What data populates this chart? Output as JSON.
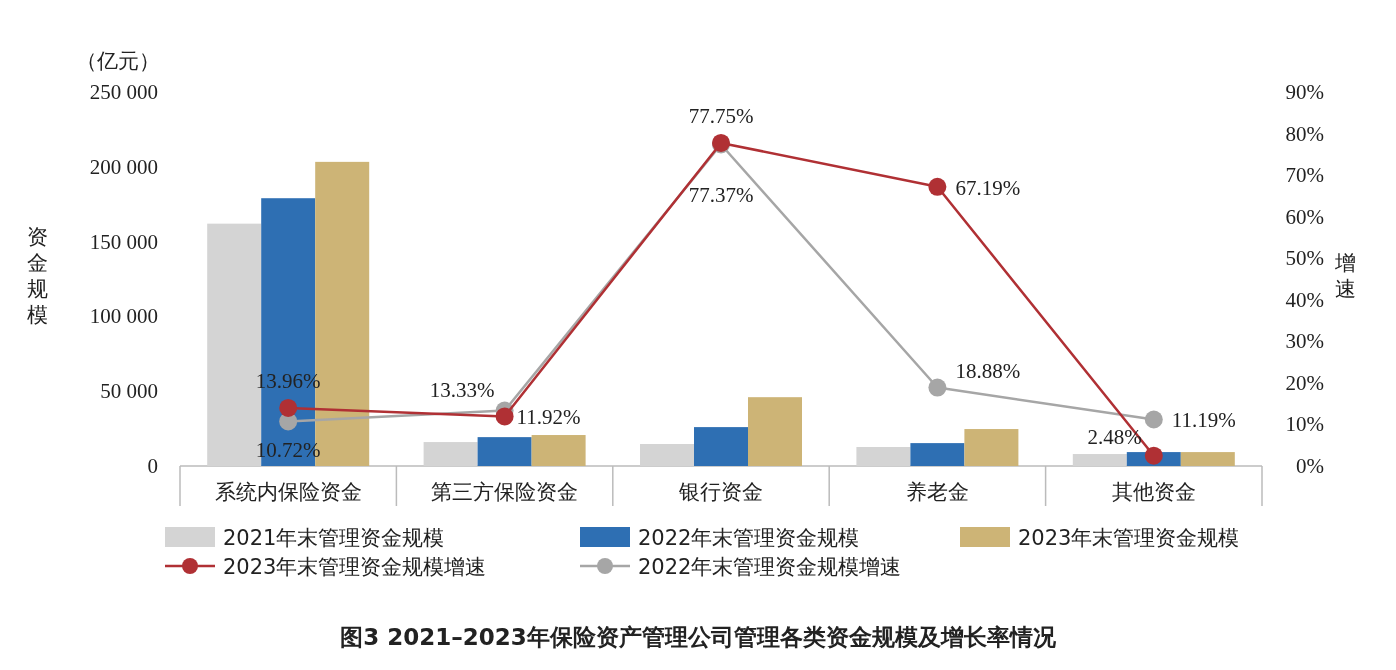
{
  "chart_data": {
    "type": "bar",
    "title": "图3 2021–2023年保险资产管理公司管理各类资金规模及增长率情况",
    "ylabel": "资金规模",
    "y2label": "增速",
    "annotations": [
      "（亿元）"
    ],
    "categories": [
      "系统内保险资金",
      "第三方保险资金",
      "银行资金",
      "养老金",
      "其他资金"
    ],
    "series": [
      {
        "name": "2021年末管理资金规模",
        "color": "#d4d4d4",
        "values": [
          162000,
          16000,
          14700,
          12700,
          8000
        ]
      },
      {
        "name": "2022年末管理资金规模",
        "color": "#2e6fb3",
        "values": [
          179000,
          19300,
          26000,
          15300,
          9300
        ]
      },
      {
        "name": "2023年末管理资金规模",
        "color": "#cdb476",
        "values": [
          203300,
          20700,
          46000,
          24700,
          9300
        ]
      },
      {
        "name": "2023年末管理资金规模增速",
        "type": "line",
        "axis": "y2",
        "color": "#b03034",
        "marker": "circle",
        "values": [
          13.96,
          11.92,
          77.75,
          67.19,
          2.48
        ],
        "value_labels": [
          "13.96%",
          "11.92%",
          "77.75%",
          "67.19%",
          "2.48%"
        ]
      },
      {
        "name": "2022年末管理资金规模增速",
        "type": "line",
        "axis": "y2",
        "color": "#a6a6a6",
        "marker": "circle",
        "values": [
          10.72,
          13.33,
          77.37,
          18.88,
          11.19
        ],
        "value_labels": [
          "10.72%",
          "13.33%",
          "77.37%",
          "18.88%",
          "11.19%"
        ]
      }
    ],
    "ylim": [
      0,
      250000
    ],
    "yticks": [
      0,
      {
        "value": 50000,
        "label": "50 000"
      },
      {
        "value": 100000,
        "label": "100 000"
      },
      {
        "value": 150000,
        "label": "150 000"
      },
      {
        "value": 200000,
        "label": "200 000"
      },
      {
        "value": 250000,
        "label": "250 000"
      }
    ],
    "y2lim": [
      0,
      90
    ],
    "y2ticks": [
      {
        "value": 0,
        "label": "0%"
      },
      {
        "value": 10,
        "label": "10%"
      },
      {
        "value": 20,
        "label": "20%"
      },
      {
        "value": 30,
        "label": "30%"
      },
      {
        "value": 40,
        "label": "40%"
      },
      {
        "value": 50,
        "label": "50%"
      },
      {
        "value": 60,
        "label": "60%"
      },
      {
        "value": 70,
        "label": "70%"
      },
      {
        "value": 80,
        "label": "80%"
      },
      {
        "value": 90,
        "label": "90%"
      }
    ],
    "legend": "bottom",
    "grid": false
  }
}
